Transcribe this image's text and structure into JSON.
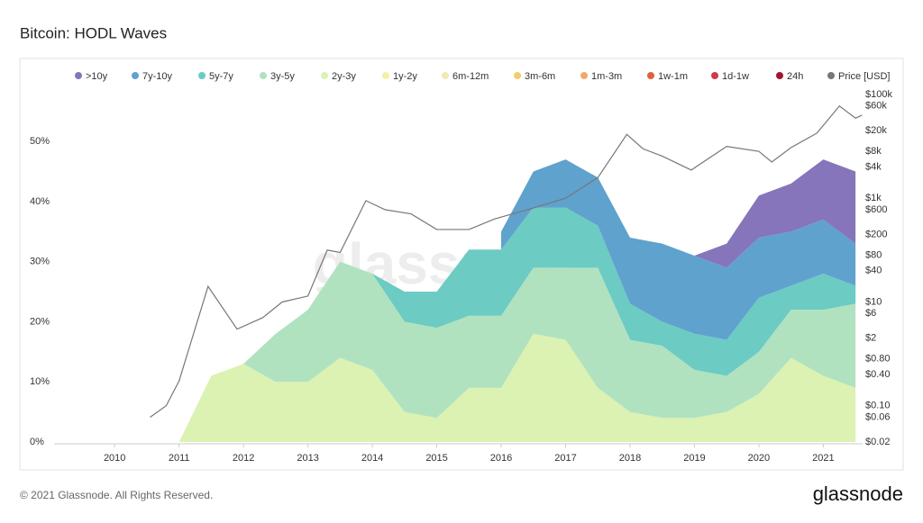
{
  "chart_data": {
    "type": "stacked-area-with-price",
    "title": "Bitcoin: HODL Waves",
    "watermark": "glassnode",
    "footer": "© 2021 Glassnode. All Rights Reserved.",
    "brand": "glassnode",
    "x": [
      2010.5,
      2011,
      2011.5,
      2012,
      2012.5,
      2013,
      2013.5,
      2014,
      2014.5,
      2015,
      2015.5,
      2016,
      2016.5,
      2017,
      2017.5,
      2018,
      2018.5,
      2019,
      2019.5,
      2020,
      2020.5,
      2021,
      2021.5
    ],
    "xlim": [
      2009.06,
      2021.61
    ],
    "xticks": [
      2010,
      2011,
      2012,
      2013,
      2014,
      2015,
      2016,
      2017,
      2018,
      2019,
      2020,
      2021
    ],
    "ylim": [
      0,
      57.8
    ],
    "yticks": [
      {
        "value": 0,
        "label": "0%"
      },
      {
        "value": 10,
        "label": "10%"
      },
      {
        "value": 20,
        "label": "20%"
      },
      {
        "value": 30,
        "label": "30%"
      },
      {
        "value": 40,
        "label": "40%"
      },
      {
        "value": 50,
        "label": "50%"
      }
    ],
    "y2lim": [
      0.02,
      100000
    ],
    "y2_log": true,
    "y2ticks": [
      {
        "value": 100000,
        "label": "$100k"
      },
      {
        "value": 60000,
        "label": "$60k"
      },
      {
        "value": 20000,
        "label": "$20k"
      },
      {
        "value": 8000,
        "label": "$8k"
      },
      {
        "value": 4000,
        "label": "$4k"
      },
      {
        "value": 1000,
        "label": "$1k"
      },
      {
        "value": 600,
        "label": "$600"
      },
      {
        "value": 200,
        "label": "$200"
      },
      {
        "value": 80,
        "label": "$80"
      },
      {
        "value": 40,
        "label": "$40"
      },
      {
        "value": 10,
        "label": "$10"
      },
      {
        "value": 6,
        "label": "$6"
      },
      {
        "value": 2,
        "label": "$2"
      },
      {
        "value": 0.8,
        "label": "$0.80"
      },
      {
        "value": 0.4,
        "label": "$0.40"
      },
      {
        "value": 0.1,
        "label": "$0.10"
      },
      {
        "value": 0.06,
        "label": "$0.06"
      },
      {
        "value": 0.02,
        "label": "$0.02"
      }
    ],
    "series": [
      {
        "name": ">10y",
        "color": "#8675bb",
        "visible": true,
        "values": [
          null,
          null,
          null,
          null,
          null,
          null,
          null,
          null,
          null,
          null,
          null,
          null,
          null,
          null,
          null,
          null,
          null,
          0,
          4,
          7,
          8,
          10,
          12
        ]
      },
      {
        "name": "7y-10y",
        "color": "#5fa2cd",
        "visible": true,
        "values": [
          null,
          null,
          null,
          null,
          null,
          null,
          null,
          null,
          null,
          null,
          null,
          3,
          6,
          8,
          8,
          11,
          13,
          13,
          12,
          10,
          9,
          9,
          7
        ]
      },
      {
        "name": "5y-7y",
        "color": "#6ccbc3",
        "visible": true,
        "values": [
          null,
          null,
          null,
          null,
          null,
          null,
          null,
          0,
          5,
          6,
          11,
          11,
          10,
          10,
          7,
          6,
          4,
          6,
          6,
          9,
          4,
          6,
          3
        ]
      },
      {
        "name": "3y-5y",
        "color": "#b0e2c0",
        "visible": true,
        "values": [
          null,
          null,
          null,
          0,
          8,
          12,
          16,
          16,
          15,
          15,
          12,
          12,
          11,
          12,
          20,
          12,
          12,
          8,
          6,
          7,
          8,
          11,
          14
        ]
      },
      {
        "name": "2y-3y",
        "color": "#dcf2b2",
        "visible": true,
        "values": [
          null,
          0,
          11,
          13,
          10,
          10,
          14,
          12,
          5,
          4,
          9,
          9,
          18,
          17,
          9,
          5,
          4,
          4,
          5,
          8,
          14,
          11,
          9
        ]
      },
      {
        "name": "1y-2y",
        "color": "#f2f2a6",
        "visible": false
      },
      {
        "name": "6m-12m",
        "color": "#ecebb0",
        "visible": false
      },
      {
        "name": "3m-6m",
        "color": "#f2cd6e",
        "visible": false
      },
      {
        "name": "1m-3m",
        "color": "#f3a86a",
        "visible": false
      },
      {
        "name": "1w-1m",
        "color": "#e0603f",
        "visible": false
      },
      {
        "name": "1d-1w",
        "color": "#d0394c",
        "visible": false
      },
      {
        "name": "24h",
        "color": "#a3152e",
        "visible": false
      },
      {
        "name": "Price [USD]",
        "color": "#777777",
        "visible": true,
        "axis": "y2",
        "x": [
          2010.55,
          2010.8,
          2011.0,
          2011.45,
          2011.9,
          2012.3,
          2012.6,
          2013.0,
          2013.3,
          2013.5,
          2013.9,
          2014.2,
          2014.6,
          2015.0,
          2015.5,
          2015.9,
          2016.5,
          2017.0,
          2017.5,
          2017.95,
          2018.2,
          2018.5,
          2018.95,
          2019.5,
          2020.0,
          2020.2,
          2020.5,
          2020.9,
          2021.25,
          2021.5,
          2021.6
        ],
        "values": [
          0.06,
          0.1,
          0.3,
          20,
          3,
          5,
          10,
          13,
          100,
          90,
          900,
          600,
          500,
          250,
          250,
          400,
          650,
          1000,
          2500,
          17000,
          9000,
          6500,
          3500,
          10000,
          8000,
          5000,
          9500,
          18000,
          60000,
          35000,
          40000
        ]
      }
    ]
  }
}
